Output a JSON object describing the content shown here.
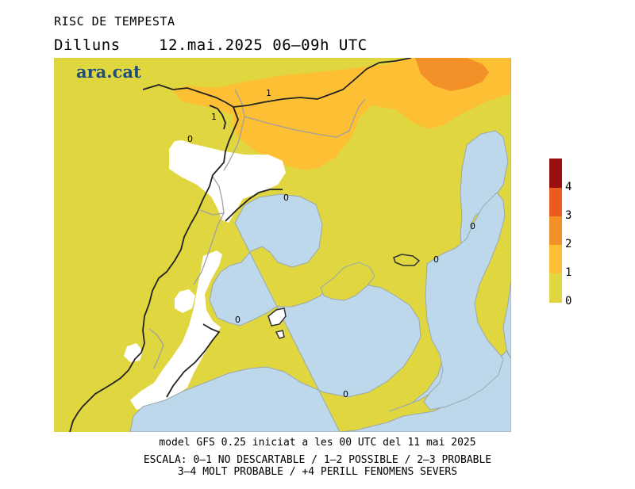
{
  "header": {
    "title": "RISC DE TEMPESTA",
    "day": "Dilluns",
    "date_time": "12.mai.2025 06–09h UTC"
  },
  "logo": {
    "text": "ara.cat"
  },
  "map": {
    "contour_labels": [
      "1",
      "1",
      "0",
      "0",
      "0",
      "0",
      "0",
      "0"
    ],
    "colors": {
      "level_0_1": "#e0d640",
      "level_1_2": "#fdbf33",
      "level_2_3": "#f39028",
      "level_3_4": "#ea5b20",
      "level_4_plus": "#9a0f10",
      "no_risk_land": "#ffffff",
      "sea": "#bdd8ea",
      "coast_line": "#222222",
      "region_line": "#a0a0a0"
    }
  },
  "legend": {
    "labels": [
      "4",
      "3",
      "2",
      "1",
      "0"
    ]
  },
  "footer": {
    "line1": "model GFS 0.25 iniciat a les 00 UTC del 11 mai 2025",
    "line2": "ESCALA: 0–1 NO DESCARTABLE / 1–2 POSSIBLE / 2–3 PROBABLE",
    "line3": "3–4 MOLT PROBABLE / +4 PERILL FENOMENS SEVERS"
  }
}
